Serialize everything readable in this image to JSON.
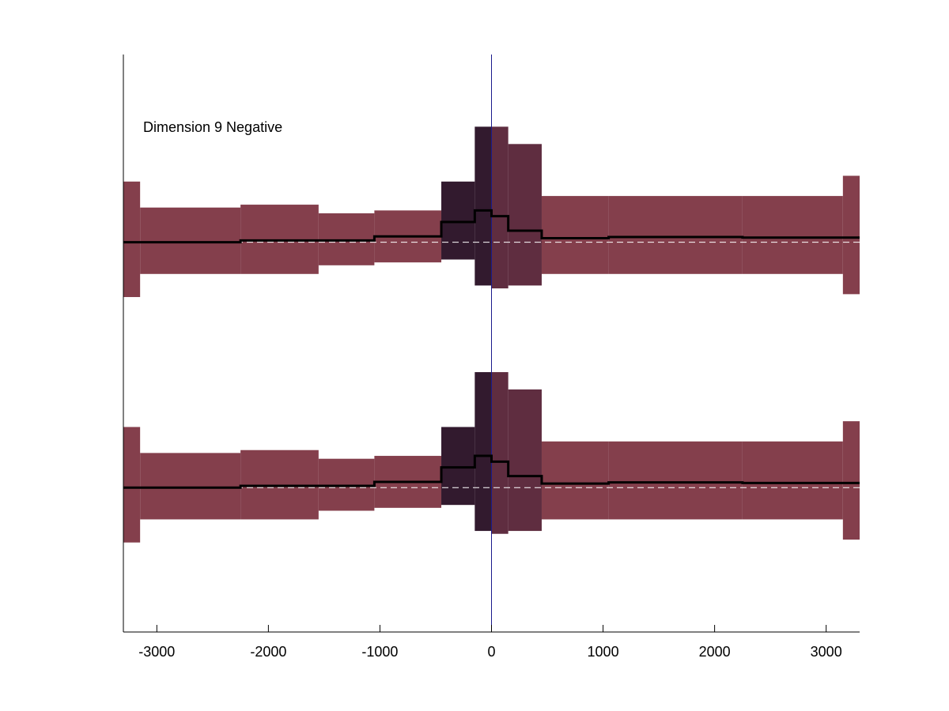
{
  "chart_data": {
    "type": "area",
    "title": "",
    "annotation": "Dimension 9 Negative",
    "xlabel": "",
    "ylabel": "",
    "xlim": [
      -3300,
      3300
    ],
    "ylim": [
      0,
      10
    ],
    "xticks": [
      -3000,
      -2000,
      -1000,
      0,
      1000,
      2000,
      3000
    ],
    "xtick_labels": [
      "-3000",
      "-2000",
      "-1000",
      "0",
      "1000",
      "2000",
      "3000"
    ],
    "yticks_visible": false,
    "grid": false,
    "zero_line": {
      "x": 0,
      "color": "#1a1a8c"
    },
    "colors": {
      "band_base": "#843f4c",
      "band_mid": "#5f2d40",
      "band_dark": "#321a2e",
      "line": "#000000",
      "baseline_dash": "#ffffff"
    },
    "panels": [
      {
        "baseline": 6.75,
        "segments": [
          {
            "x0": -3300,
            "x1": -3150,
            "lo": 5.8,
            "hi": 7.8,
            "mean": 6.75,
            "color": "band_base"
          },
          {
            "x0": -3150,
            "x1": -2250,
            "lo": 6.2,
            "hi": 7.35,
            "mean": 6.75,
            "color": "band_base"
          },
          {
            "x0": -2250,
            "x1": -1550,
            "lo": 6.2,
            "hi": 7.4,
            "mean": 6.78,
            "color": "band_base"
          },
          {
            "x0": -1550,
            "x1": -1050,
            "lo": 6.35,
            "hi": 7.25,
            "mean": 6.78,
            "color": "band_base"
          },
          {
            "x0": -1050,
            "x1": -450,
            "lo": 6.4,
            "hi": 7.3,
            "mean": 6.85,
            "color": "band_base"
          },
          {
            "x0": -450,
            "x1": -150,
            "lo": 6.45,
            "hi": 7.8,
            "mean": 7.1,
            "color": "band_dark"
          },
          {
            "x0": -150,
            "x1": 0,
            "lo": 6.0,
            "hi": 8.75,
            "mean": 7.3,
            "color": "band_dark"
          },
          {
            "x0": 0,
            "x1": 150,
            "lo": 5.95,
            "hi": 8.75,
            "mean": 7.2,
            "color": "band_mid"
          },
          {
            "x0": 150,
            "x1": 450,
            "lo": 6.0,
            "hi": 8.45,
            "mean": 6.95,
            "color": "band_mid"
          },
          {
            "x0": 450,
            "x1": 1050,
            "lo": 6.2,
            "hi": 7.55,
            "mean": 6.82,
            "color": "band_base"
          },
          {
            "x0": 1050,
            "x1": 2250,
            "lo": 6.2,
            "hi": 7.55,
            "mean": 6.84,
            "color": "band_base"
          },
          {
            "x0": 2250,
            "x1": 3150,
            "lo": 6.2,
            "hi": 7.55,
            "mean": 6.83,
            "color": "band_base"
          },
          {
            "x0": 3150,
            "x1": 3300,
            "lo": 5.85,
            "hi": 7.9,
            "mean": 6.83,
            "color": "band_base"
          }
        ]
      },
      {
        "baseline": 2.5,
        "segments": [
          {
            "x0": -3300,
            "x1": -3150,
            "lo": 1.55,
            "hi": 3.55,
            "mean": 2.5,
            "color": "band_base"
          },
          {
            "x0": -3150,
            "x1": -2250,
            "lo": 1.95,
            "hi": 3.1,
            "mean": 2.5,
            "color": "band_base"
          },
          {
            "x0": -2250,
            "x1": -1550,
            "lo": 1.95,
            "hi": 3.15,
            "mean": 2.53,
            "color": "band_base"
          },
          {
            "x0": -1550,
            "x1": -1050,
            "lo": 2.1,
            "hi": 3.0,
            "mean": 2.53,
            "color": "band_base"
          },
          {
            "x0": -1050,
            "x1": -450,
            "lo": 2.15,
            "hi": 3.05,
            "mean": 2.6,
            "color": "band_base"
          },
          {
            "x0": -450,
            "x1": -150,
            "lo": 2.2,
            "hi": 3.55,
            "mean": 2.85,
            "color": "band_dark"
          },
          {
            "x0": -150,
            "x1": 0,
            "lo": 1.75,
            "hi": 4.5,
            "mean": 3.05,
            "color": "band_dark"
          },
          {
            "x0": 0,
            "x1": 150,
            "lo": 1.7,
            "hi": 4.5,
            "mean": 2.95,
            "color": "band_mid"
          },
          {
            "x0": 150,
            "x1": 450,
            "lo": 1.75,
            "hi": 4.2,
            "mean": 2.7,
            "color": "band_mid"
          },
          {
            "x0": 450,
            "x1": 1050,
            "lo": 1.95,
            "hi": 3.3,
            "mean": 2.57,
            "color": "band_base"
          },
          {
            "x0": 1050,
            "x1": 2250,
            "lo": 1.95,
            "hi": 3.3,
            "mean": 2.59,
            "color": "band_base"
          },
          {
            "x0": 2250,
            "x1": 3150,
            "lo": 1.95,
            "hi": 3.3,
            "mean": 2.58,
            "color": "band_base"
          },
          {
            "x0": 3150,
            "x1": 3300,
            "lo": 1.6,
            "hi": 3.65,
            "mean": 2.58,
            "color": "band_base"
          }
        ]
      }
    ]
  }
}
